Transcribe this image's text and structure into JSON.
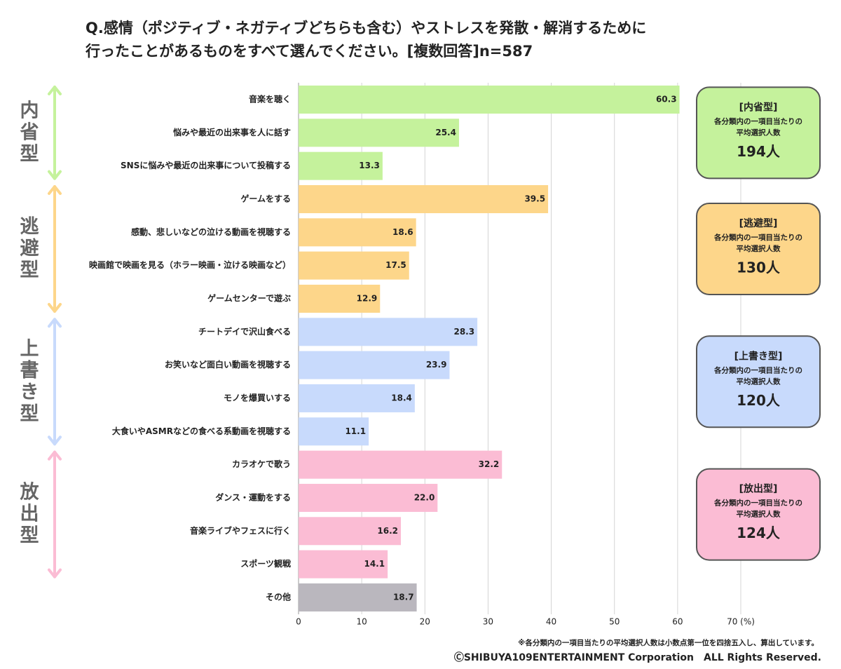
{
  "chart_data": {
    "type": "bar",
    "title_lines": [
      "Q.感情（ポジティブ・ネガティブどちらも含む）やストレスを発散・解消するために",
      "行ったことがあるものをすべて選んでください。[複数回答]n=587"
    ],
    "groups": [
      {
        "name": "内省型",
        "color": "#c5f29c",
        "label": "[内省型]",
        "note_lines": [
          "各分類内の一項目当たりの",
          "平均選択人数"
        ],
        "average": 194,
        "average_label": "194人",
        "categories": [
          "音楽を聴く",
          "悩みや最近の出来事を人に話す",
          "SNSに悩みや最近の出来事について投稿する"
        ],
        "values": [
          60.3,
          25.4,
          13.3
        ],
        "value_labels": [
          "60.3",
          "25.4",
          "13.3"
        ]
      },
      {
        "name": "逃避型",
        "color": "#fdd68a",
        "label": "[逃避型]",
        "note_lines": [
          "各分類内の一項目当たりの",
          "平均選択人数"
        ],
        "average": 130,
        "average_label": "130人",
        "categories": [
          "ゲームをする",
          "感動、悲しいなどの泣ける動画を視聴する",
          "映画館で映画を見る（ホラー映画・泣ける映画など）",
          "ゲームセンターで遊ぶ"
        ],
        "values": [
          39.5,
          18.6,
          17.5,
          12.9
        ],
        "value_labels": [
          "39.5",
          "18.6",
          "17.5",
          "12.9"
        ]
      },
      {
        "name": "上書き型",
        "color": "#c8dafc",
        "label": "[上書き型]",
        "note_lines": [
          "各分類内の一項目当たりの",
          "平均選択人数"
        ],
        "average": 120,
        "average_label": "120人",
        "categories": [
          "チートデイで沢山食べる",
          "お笑いなど面白い動画を視聴する",
          "モノを爆買いする",
          "大食いやASMRなどの食べる系動画を視聴する"
        ],
        "values": [
          28.3,
          23.9,
          18.4,
          11.1
        ],
        "value_labels": [
          "28.3",
          "23.9",
          "18.4",
          "11.1"
        ]
      },
      {
        "name": "放出型",
        "color": "#fbbcd4",
        "label": "[放出型]",
        "note_lines": [
          "各分類内の一項目当たりの",
          "平均選択人数"
        ],
        "average": 124,
        "average_label": "124人",
        "categories": [
          "カラオケで歌う",
          "ダンス・運動をする",
          "音楽ライブやフェスに行く",
          "スポーツ観戦"
        ],
        "values": [
          32.2,
          22.0,
          16.2,
          14.1
        ],
        "value_labels": [
          "32.2",
          "22.0",
          "16.2",
          "14.1"
        ]
      }
    ],
    "other": {
      "category": "その他",
      "value": 18.7,
      "value_label": "18.7",
      "color": "#bab7be"
    },
    "xlim": [
      0,
      70
    ],
    "xticks": [
      0,
      10,
      20,
      30,
      40,
      50,
      60,
      {
        "value": 70,
        "label": "70 (%)"
      }
    ],
    "grid": true,
    "footnote": "※各分類内の一項目当たりの平均選択人数は小数点第一位を四捨五入し、算出しています。",
    "copyright": "ⒸSHIBUYA109ENTERTAINMENT Corporation　ALL Rights Reserved."
  }
}
